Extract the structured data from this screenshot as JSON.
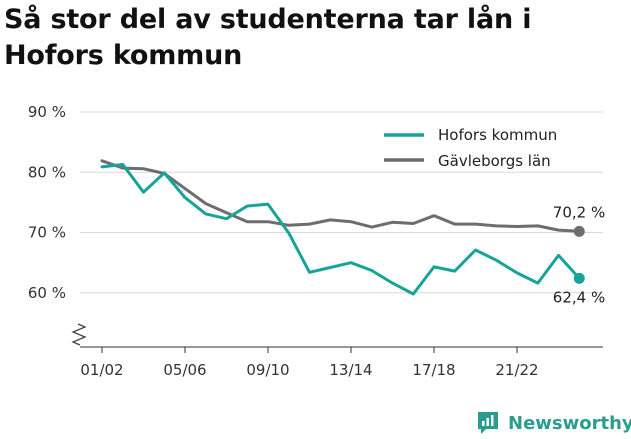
{
  "title": "Så stor del av studenterna tar lån i Hofors kommun",
  "brand": {
    "name": "Newsworthy",
    "icon": "newsworthy-logo-icon",
    "color": "#2a9d8f"
  },
  "chart_data": {
    "type": "line",
    "title": "Så stor del av studenterna tar lån i Hofors kommun",
    "xlabel": "",
    "ylabel": "",
    "ylim": [
      51,
      92
    ],
    "y_ticks": [
      60,
      70,
      80,
      90
    ],
    "y_tick_labels": [
      "60 %",
      "70 %",
      "80 %",
      "90 %"
    ],
    "y_axis_break": true,
    "x_ticks": [
      "01/02",
      "05/06",
      "09/10",
      "13/14",
      "17/18",
      "21/22"
    ],
    "x": [
      "01/02",
      "02/03",
      "03/04",
      "04/05",
      "05/06",
      "06/07",
      "07/08",
      "08/09",
      "09/10",
      "10/11",
      "11/12",
      "12/13",
      "13/14",
      "14/15",
      "15/16",
      "16/17",
      "17/18",
      "18/19",
      "19/20",
      "20/21",
      "21/22",
      "22/23",
      "23/24",
      "24/25"
    ],
    "legend_position": "top-right",
    "grid": "horizontal",
    "series": [
      {
        "name": "Hofors kommun",
        "color": "#17a398",
        "values": [
          80.9,
          81.3,
          76.7,
          79.9,
          75.8,
          73.1,
          72.3,
          74.4,
          74.7,
          69.9,
          63.4,
          64.2,
          65.0,
          63.7,
          61.6,
          59.8,
          64.3,
          63.6,
          67.1,
          65.4,
          63.3,
          61.6,
          66.2,
          62.4
        ],
        "end_label": "62,4 %"
      },
      {
        "name": "Gävleborgs län",
        "color": "#6d6d70",
        "values": [
          81.9,
          80.7,
          80.6,
          79.8,
          77.3,
          74.8,
          73.3,
          71.8,
          71.8,
          71.2,
          71.4,
          72.1,
          71.8,
          70.9,
          71.7,
          71.5,
          72.8,
          71.4,
          71.4,
          71.1,
          71.0,
          71.1,
          70.4,
          70.2
        ],
        "end_label": "70,2 %"
      }
    ]
  }
}
